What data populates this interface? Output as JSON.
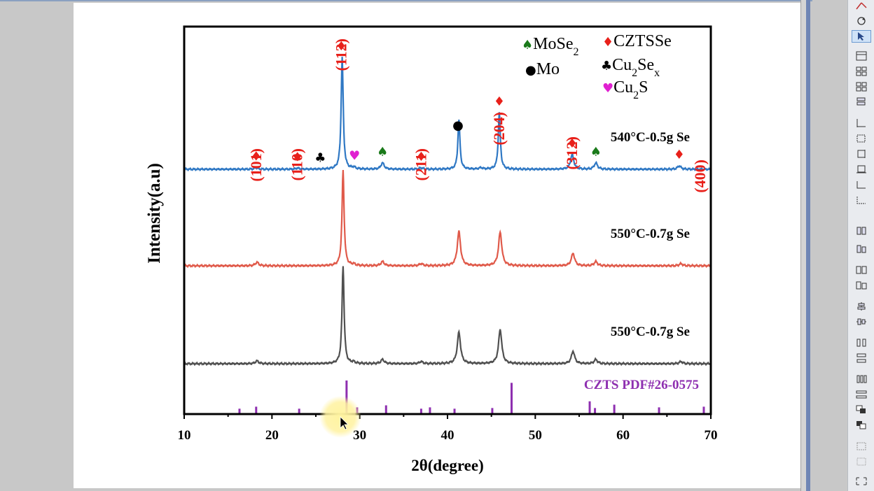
{
  "chart_data": {
    "type": "line",
    "title": "",
    "xlabel": "2θ(degree)",
    "ylabel": "Intensity(a.u)",
    "xlim": [
      10,
      70
    ],
    "xticks": [
      10,
      20,
      30,
      40,
      50,
      60,
      70
    ],
    "series": [
      {
        "name": "540°C-0.5g Se",
        "color": "#2f78c4",
        "baseline": 0.0,
        "peaks": [
          {
            "x": 18.2,
            "h": 0.012
          },
          {
            "x": 22.9,
            "h": 0.008
          },
          {
            "x": 28.0,
            "h": 0.8
          },
          {
            "x": 29.3,
            "h": 0.012
          },
          {
            "x": 32.6,
            "h": 0.045
          },
          {
            "x": 37.0,
            "h": 0.01
          },
          {
            "x": 41.3,
            "h": 0.355
          },
          {
            "x": 43.8,
            "h": 0.01
          },
          {
            "x": 45.9,
            "h": 0.405
          },
          {
            "x": 54.2,
            "h": 0.105
          },
          {
            "x": 56.9,
            "h": 0.045
          },
          {
            "x": 66.4,
            "h": 0.025
          }
        ]
      },
      {
        "name": "550°C-0.7g Se",
        "color": "#e05a4a",
        "baseline": 0.0,
        "peaks": [
          {
            "x": 18.3,
            "h": 0.025
          },
          {
            "x": 28.1,
            "h": 0.68
          },
          {
            "x": 29.3,
            "h": 0.01
          },
          {
            "x": 32.6,
            "h": 0.03
          },
          {
            "x": 37.0,
            "h": 0.015
          },
          {
            "x": 41.3,
            "h": 0.245
          },
          {
            "x": 46.0,
            "h": 0.24
          },
          {
            "x": 54.3,
            "h": 0.09
          },
          {
            "x": 56.9,
            "h": 0.03
          },
          {
            "x": 66.6,
            "h": 0.015
          }
        ]
      },
      {
        "name": "550°C-0.7g Se",
        "color": "#505050",
        "baseline": 0.0,
        "peaks": [
          {
            "x": 18.3,
            "h": 0.02
          },
          {
            "x": 28.1,
            "h": 0.7
          },
          {
            "x": 29.3,
            "h": 0.01
          },
          {
            "x": 32.6,
            "h": 0.03
          },
          {
            "x": 37.0,
            "h": 0.015
          },
          {
            "x": 41.3,
            "h": 0.225
          },
          {
            "x": 46.0,
            "h": 0.245
          },
          {
            "x": 54.3,
            "h": 0.09
          },
          {
            "x": 56.9,
            "h": 0.03
          },
          {
            "x": 66.6,
            "h": 0.015
          }
        ]
      }
    ],
    "reference": {
      "label": "CZTS PDF#26-0575",
      "color": "#8e2fb0",
      "lines": [
        {
          "x": 16.3,
          "h": 0.16
        },
        {
          "x": 18.2,
          "h": 0.22
        },
        {
          "x": 23.1,
          "h": 0.16
        },
        {
          "x": 28.5,
          "h": 1.0
        },
        {
          "x": 29.7,
          "h": 0.2
        },
        {
          "x": 33.0,
          "h": 0.26
        },
        {
          "x": 37.0,
          "h": 0.16
        },
        {
          "x": 38.0,
          "h": 0.2
        },
        {
          "x": 40.8,
          "h": 0.16
        },
        {
          "x": 45.1,
          "h": 0.18
        },
        {
          "x": 47.3,
          "h": 0.93
        },
        {
          "x": 56.2,
          "h": 0.38
        },
        {
          "x": 56.8,
          "h": 0.18
        },
        {
          "x": 59.0,
          "h": 0.28
        },
        {
          "x": 64.1,
          "h": 0.2
        },
        {
          "x": 69.2,
          "h": 0.22
        }
      ]
    },
    "hkl_labels": [
      {
        "text": "(101)",
        "x": 18.2
      },
      {
        "text": "(110)",
        "x": 22.9
      },
      {
        "text": "(112)",
        "x": 27.9
      },
      {
        "text": "(211)",
        "x": 37.0
      },
      {
        "text": "(204)",
        "x": 45.9
      },
      {
        "text": "(312)",
        "x": 54.2
      },
      {
        "text": "(400)",
        "x": 68.8
      }
    ],
    "phase_markers": [
      {
        "phase": "CZTSSe",
        "x": 18.2
      },
      {
        "phase": "CZTSSe",
        "x": 22.9
      },
      {
        "phase": "CZTSSe",
        "x": 27.9
      },
      {
        "phase": "CZTSSe",
        "x": 37.0
      },
      {
        "phase": "CZTSSe",
        "x": 45.9
      },
      {
        "phase": "CZTSSe",
        "x": 54.2
      },
      {
        "phase": "CZTSSe",
        "x": 66.4
      },
      {
        "phase": "Cu2Sex",
        "x": 25.5
      },
      {
        "phase": "Cu2S",
        "x": 29.4
      },
      {
        "phase": "MoSe2",
        "x": 32.6
      },
      {
        "phase": "MoSe2",
        "x": 56.9
      },
      {
        "phase": "Mo",
        "x": 41.2
      }
    ],
    "legend": {
      "placement": "top-right",
      "entries": [
        {
          "phase": "MoSe2",
          "symbol": "♠",
          "color": "#1a7a1a",
          "base": "MoSe",
          "sub": "2",
          "tail": ""
        },
        {
          "phase": "CZTSSe",
          "symbol": "♦",
          "color": "#e8201a",
          "base": "CZTSSe",
          "sub": "",
          "tail": ""
        },
        {
          "phase": "Mo",
          "symbol": "●",
          "color": "#000000",
          "base": "Mo",
          "sub": "",
          "tail": ""
        },
        {
          "phase": "Cu2Sex",
          "symbol": "♣",
          "color": "#000000",
          "base": "Cu",
          "sub": "2",
          "tail": "Se",
          "sub2": "x"
        },
        {
          "phase": "Cu2S",
          "symbol": "♥",
          "color": "#e020d0",
          "base": "Cu",
          "sub": "2",
          "tail": "S"
        }
      ]
    },
    "label_color": "#e8201a"
  }
}
